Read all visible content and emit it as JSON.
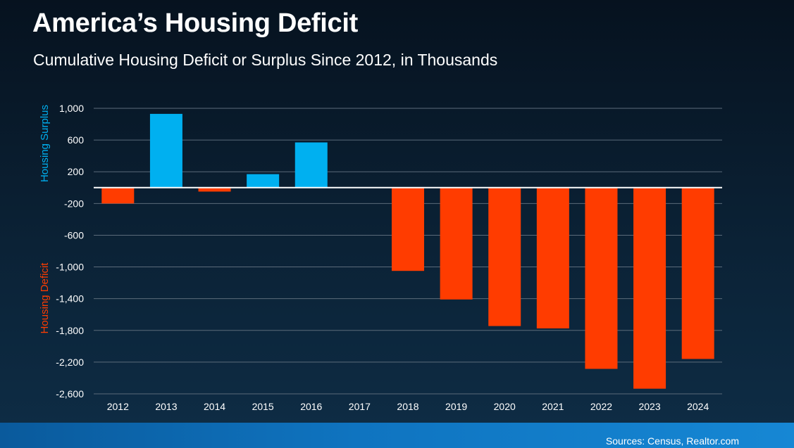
{
  "title": "America’s Housing Deficit",
  "subtitle": "Cumulative Housing Deficit or Surplus Since 2012, in Thousands",
  "sources": "Sources: Census, Realtor.com",
  "colors": {
    "surplus": "#00b0f0",
    "deficit": "#ff3c00",
    "grid": "#5b6b7a",
    "zero_line": "#ffffff"
  },
  "chart_data": {
    "type": "bar",
    "categories": [
      "2012",
      "2013",
      "2014",
      "2015",
      "2016",
      "2017",
      "2018",
      "2019",
      "2020",
      "2021",
      "2022",
      "2023",
      "2024"
    ],
    "values": [
      -200,
      930,
      -50,
      170,
      570,
      0,
      -1050,
      -1410,
      -1745,
      -1775,
      -2285,
      -2535,
      -2160
    ],
    "ylim": [
      -2600,
      1000
    ],
    "yticks": [
      1000,
      600,
      200,
      -200,
      -600,
      -1000,
      -1400,
      -1800,
      -2200,
      -2600
    ],
    "ytick_labels": [
      "1,000",
      "600",
      "200",
      "-200",
      "-600",
      "-1,000",
      "-1,400",
      "-1,800",
      "-2,200",
      "-2,600"
    ],
    "ylabel_positive": "Housing Surplus",
    "ylabel_negative": "Housing Deficit",
    "grid": true
  }
}
